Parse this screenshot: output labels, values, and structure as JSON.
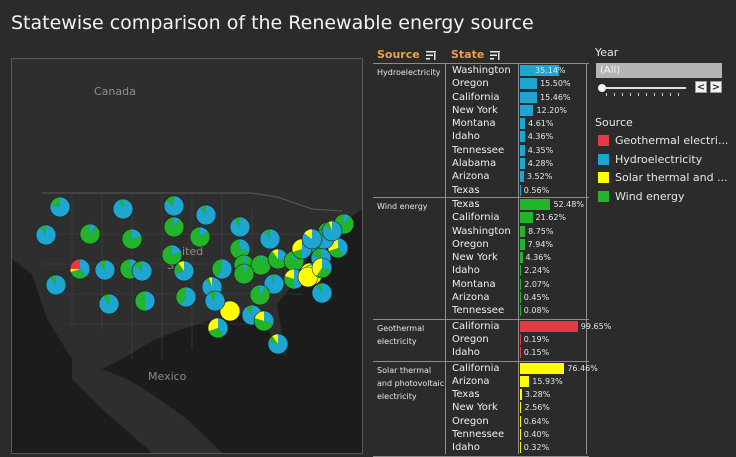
{
  "title": "Statewise comparison of the Renewable energy source",
  "colors": {
    "geothermal": "#e63946",
    "hydro": "#1ea5d0",
    "solar": "#ffff00",
    "wind": "#22b42a",
    "header": "#e8a24a"
  },
  "map": {
    "labels": {
      "canada": "Canada",
      "mexico": "Mexico",
      "states": "S",
      "united": "United"
    }
  },
  "table": {
    "header_source": "Source",
    "header_state": "State",
    "groups": [
      {
        "source": "Hydroelectricity",
        "color": "#1ea5d0",
        "rows": [
          {
            "state": "Washington",
            "pct": "35.14%",
            "value": 35.14
          },
          {
            "state": "Oregon",
            "pct": "15.50%",
            "value": 15.5
          },
          {
            "state": "California",
            "pct": "15.46%",
            "value": 15.46
          },
          {
            "state": "New York",
            "pct": "12.20%",
            "value": 12.2
          },
          {
            "state": "Montana",
            "pct": "4.61%",
            "value": 4.61
          },
          {
            "state": "Idaho",
            "pct": "4.36%",
            "value": 4.36
          },
          {
            "state": "Tennessee",
            "pct": "4.35%",
            "value": 4.35
          },
          {
            "state": "Alabama",
            "pct": "4.28%",
            "value": 4.28
          },
          {
            "state": "Arizona",
            "pct": "3.52%",
            "value": 3.52
          },
          {
            "state": "Texas",
            "pct": "0.56%",
            "value": 0.56
          }
        ]
      },
      {
        "source": "Wind energy",
        "color": "#22b42a",
        "rows": [
          {
            "state": "Texas",
            "pct": "52.48%",
            "value": 52.48
          },
          {
            "state": "California",
            "pct": "21.62%",
            "value": 21.62
          },
          {
            "state": "Washington",
            "pct": "8.75%",
            "value": 8.75
          },
          {
            "state": "Oregon",
            "pct": "7.94%",
            "value": 7.94
          },
          {
            "state": "New York",
            "pct": "4.36%",
            "value": 4.36
          },
          {
            "state": "Idaho",
            "pct": "2.24%",
            "value": 2.24
          },
          {
            "state": "Montana",
            "pct": "2.07%",
            "value": 2.07
          },
          {
            "state": "Arizona",
            "pct": "0.45%",
            "value": 0.45
          },
          {
            "state": "Tennessee",
            "pct": "0.08%",
            "value": 0.08
          }
        ]
      },
      {
        "source": "Geothermal electricity",
        "color": "#e63946",
        "rows": [
          {
            "state": "California",
            "pct": "99.65%",
            "value": 99.65
          },
          {
            "state": "Oregon",
            "pct": "0.19%",
            "value": 0.19
          },
          {
            "state": "Idaho",
            "pct": "0.15%",
            "value": 0.15
          }
        ]
      },
      {
        "source": "Solar thermal and photovoltaic electricity",
        "color": "#ffff00",
        "rows": [
          {
            "state": "California",
            "pct": "76.46%",
            "value": 76.46
          },
          {
            "state": "Arizona",
            "pct": "15.93%",
            "value": 15.93
          },
          {
            "state": "Texas",
            "pct": "3.28%",
            "value": 3.28
          },
          {
            "state": "New York",
            "pct": "2.56%",
            "value": 2.56
          },
          {
            "state": "Oregon",
            "pct": "0.64%",
            "value": 0.64
          },
          {
            "state": "Tennessee",
            "pct": "0.40%",
            "value": 0.4
          },
          {
            "state": "Idaho",
            "pct": "0.32%",
            "value": 0.32
          }
        ]
      }
    ]
  },
  "filters": {
    "year_label": "Year",
    "year_value": "(All)",
    "prev_label": "<",
    "next_label": ">",
    "source_label": "Source",
    "legend": [
      {
        "label": "Geothermal electri...",
        "color": "#e63946"
      },
      {
        "label": "Hydroelectricity",
        "color": "#1ea5d0"
      },
      {
        "label": "Solar thermal and ...",
        "color": "#ffff00"
      },
      {
        "label": "Wind energy",
        "color": "#22b42a"
      }
    ]
  },
  "pies": [
    {
      "hydro": 0.8,
      "wind": 0.2,
      "solar": 0,
      "geo": 0
    },
    {
      "hydro": 0.95,
      "wind": 0.05,
      "solar": 0,
      "geo": 0
    },
    {
      "hydro": 0.85,
      "wind": 0.15,
      "solar": 0,
      "geo": 0
    },
    {
      "hydro": 0.9,
      "wind": 0.1,
      "solar": 0,
      "geo": 0
    },
    {
      "hydro": 0.2,
      "wind": 0.8,
      "solar": 0,
      "geo": 0
    },
    {
      "hydro": 0.1,
      "wind": 0.9,
      "solar": 0,
      "geo": 0
    },
    {
      "hydro": 0.9,
      "wind": 0.1,
      "solar": 0,
      "geo": 0
    },
    {
      "hydro": 0.9,
      "wind": 0.1,
      "solar": 0,
      "geo": 0
    },
    {
      "hydro": 0.1,
      "wind": 0.9,
      "solar": 0,
      "geo": 0
    },
    {
      "hydro": 0.15,
      "wind": 0.85,
      "solar": 0,
      "geo": 0
    },
    {
      "hydro": 0.3,
      "wind": 0.7,
      "solar": 0,
      "geo": 0
    },
    {
      "hydro": 0.1,
      "wind": 0.9,
      "solar": 0,
      "geo": 0
    },
    {
      "hydro": 0.2,
      "wind": 0.8,
      "solar": 0,
      "geo": 0
    },
    {
      "hydro": 0.6,
      "wind": 0.4,
      "solar": 0,
      "geo": 0
    },
    {
      "hydro": 0.9,
      "wind": 0.1,
      "solar": 0,
      "geo": 0
    },
    {
      "hydro": 0.4,
      "wind": 0.3,
      "solar": 0.05,
      "geo": 0.25
    },
    {
      "hydro": 0.9,
      "wind": 0.1,
      "solar": 0,
      "geo": 0
    },
    {
      "hydro": 0.85,
      "wind": 0.15,
      "solar": 0,
      "geo": 0
    },
    {
      "hydro": 0.7,
      "wind": 0.2,
      "solar": 0.1,
      "geo": 0
    },
    {
      "hydro": 0.9,
      "wind": 0.05,
      "solar": 0.05,
      "geo": 0
    },
    {
      "hydro": 0.05,
      "wind": 0.95,
      "solar": 0,
      "geo": 0
    },
    {
      "hydro": 0.05,
      "wind": 0.95,
      "solar": 0,
      "geo": 0
    },
    {
      "hydro": 0.3,
      "wind": 0.6,
      "solar": 0.1,
      "geo": 0
    },
    {
      "hydro": 0.1,
      "wind": 0.9,
      "solar": 0,
      "geo": 0
    },
    {
      "hydro": 0.8,
      "wind": 0.2,
      "solar": 0,
      "geo": 0
    },
    {
      "hydro": 0.1,
      "wind": 0.9,
      "solar": 0,
      "geo": 0
    },
    {
      "hydro": 0.1,
      "wind": 0.9,
      "solar": 0,
      "geo": 0
    },
    {
      "hydro": 0.95,
      "wind": 0.05,
      "solar": 0,
      "geo": 0
    },
    {
      "hydro": 0.1,
      "wind": 0.9,
      "solar": 0,
      "geo": 0
    },
    {
      "hydro": 0,
      "wind": 0,
      "solar": 1,
      "geo": 0
    },
    {
      "hydro": 0.05,
      "wind": 0.95,
      "solar": 0,
      "geo": 0
    },
    {
      "hydro": 0.9,
      "wind": 0.1,
      "solar": 0,
      "geo": 0
    },
    {
      "hydro": 0.9,
      "wind": 0.1,
      "solar": 0,
      "geo": 0
    },
    {
      "hydro": 0.5,
      "wind": 0.5,
      "solar": 0,
      "geo": 0
    },
    {
      "hydro": 0.6,
      "wind": 0.4,
      "solar": 0,
      "geo": 0
    },
    {
      "hydro": 0.5,
      "wind": 0.2,
      "solar": 0.3,
      "geo": 0
    },
    {
      "hydro": 0.8,
      "wind": 0.2,
      "solar": 0,
      "geo": 0
    },
    {
      "hydro": 0.6,
      "wind": 0.2,
      "solar": 0.2,
      "geo": 0
    },
    {
      "hydro": 0.5,
      "wind": 0.3,
      "solar": 0.2,
      "geo": 0
    },
    {
      "hydro": 0.9,
      "wind": 0.1,
      "solar": 0,
      "geo": 0
    },
    {
      "hydro": 0.2,
      "wind": 0.1,
      "solar": 0.7,
      "geo": 0
    },
    {
      "hydro": 0,
      "wind": 0,
      "solar": 1,
      "geo": 0
    },
    {
      "hydro": 0.3,
      "wind": 0.3,
      "solar": 0.4,
      "geo": 0
    },
    {
      "hydro": 0.4,
      "wind": 0.3,
      "solar": 0.3,
      "geo": 0
    },
    {
      "hydro": 0.8,
      "wind": 0.2,
      "solar": 0,
      "geo": 0
    },
    {
      "hydro": 0.85,
      "wind": 0.1,
      "solar": 0.05,
      "geo": 0
    },
    {
      "hydro": 0.9,
      "wind": 0.1,
      "solar": 0,
      "geo": 0
    },
    {
      "hydro": 0.9,
      "wind": 0.1,
      "solar": 0,
      "geo": 0
    },
    {
      "hydro": 0.4,
      "wind": 0.3,
      "solar": 0.3,
      "geo": 0
    },
    {
      "hydro": 0.3,
      "wind": 0.5,
      "solar": 0.2,
      "geo": 0
    },
    {
      "hydro": 0.8,
      "wind": 0.1,
      "solar": 0.1,
      "geo": 0
    },
    {
      "hydro": 0.85,
      "wind": 0,
      "solar": 0.15,
      "geo": 0
    }
  ]
}
